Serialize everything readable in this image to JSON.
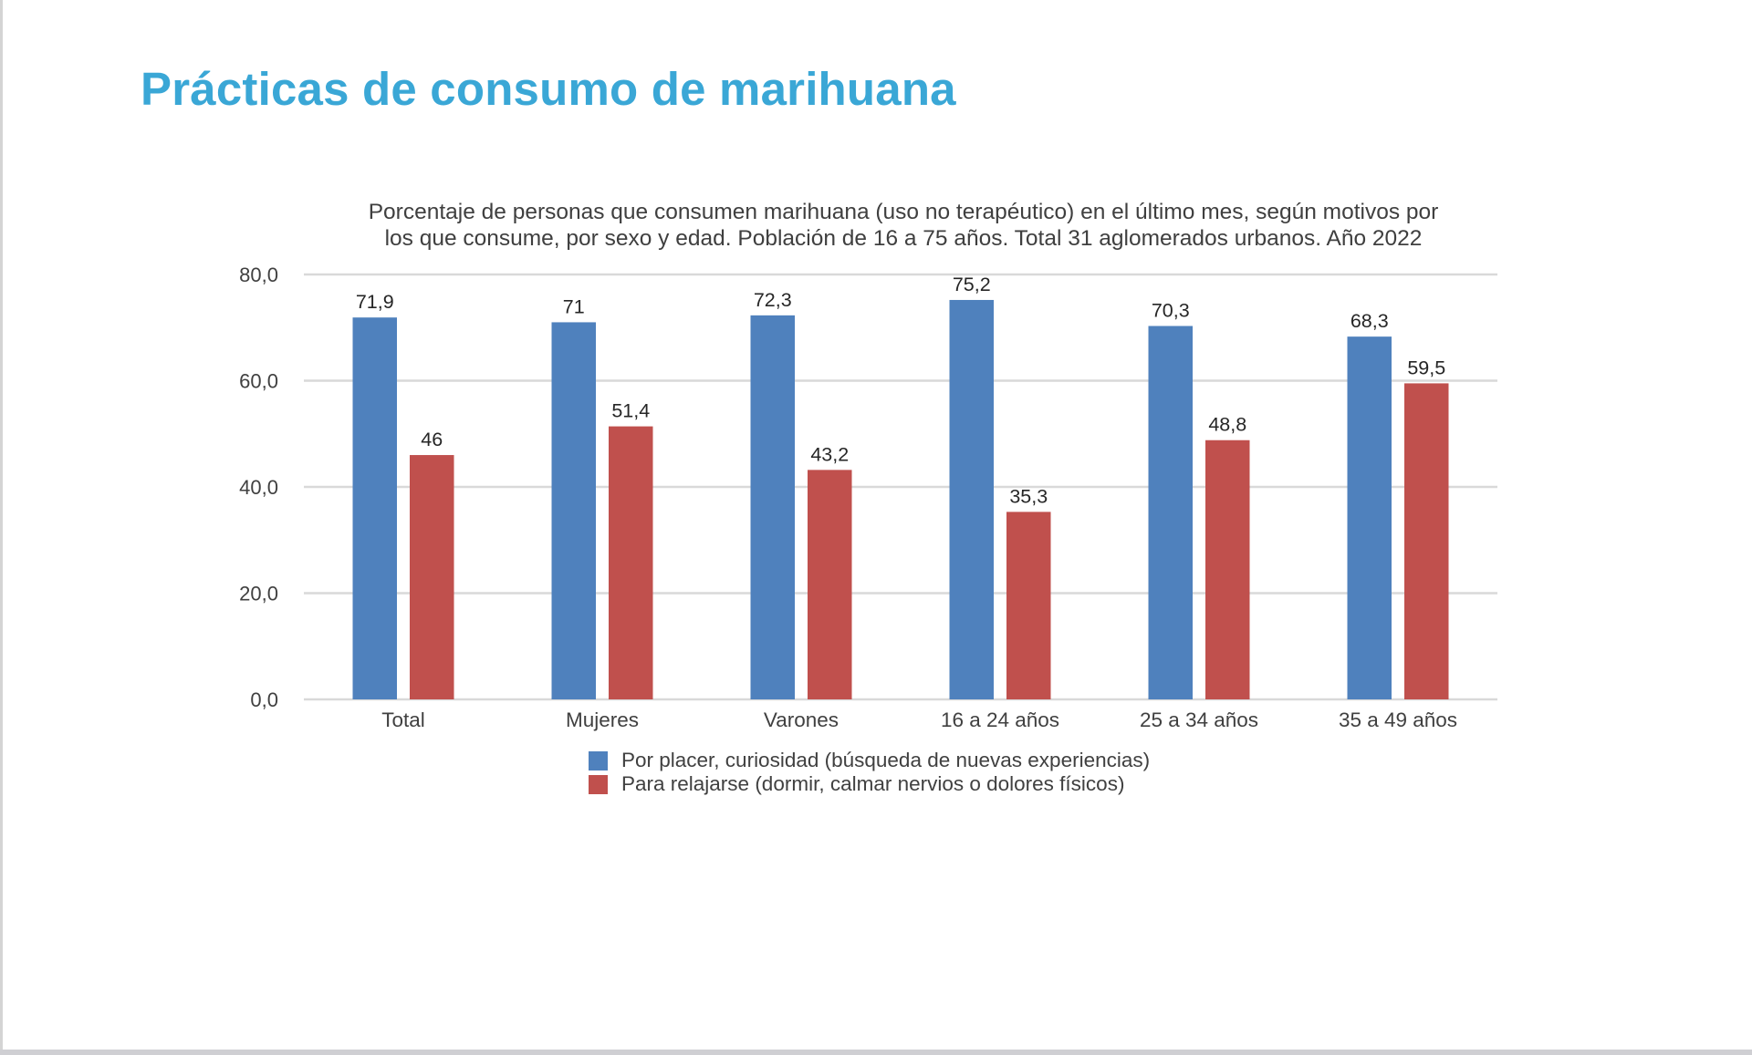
{
  "page": {
    "title": "Prácticas de consumo de marihuana",
    "title_color": "#3aa7d6"
  },
  "chart_data": {
    "type": "bar",
    "title_lines": [
      "Porcentaje de personas que consumen marihuana (uso no terapéutico) en el último mes, según motivos por",
      "los que consume, por sexo y edad. Población de 16 a 75 años. Total 31 aglomerados urbanos. Año 2022"
    ],
    "categories": [
      "Total",
      "Mujeres",
      "Varones",
      "16 a 24 años",
      "25 a 34 años",
      "35 a 49 años"
    ],
    "series": [
      {
        "name": "Por placer, curiosidad (búsqueda de nuevas experiencias)",
        "color": "#4f81bd",
        "values": [
          71.9,
          71,
          72.3,
          75.2,
          70.3,
          68.3
        ],
        "labels": [
          "71,9",
          "71",
          "72,3",
          "75,2",
          "70,3",
          "68,3"
        ]
      },
      {
        "name": "Para relajarse (dormir, calmar nervios o dolores físicos)",
        "color": "#c0504d",
        "values": [
          46,
          51.4,
          43.2,
          35.3,
          48.8,
          59.5
        ],
        "labels": [
          "46",
          "51,4",
          "43,2",
          "35,3",
          "48,8",
          "59,5"
        ]
      }
    ],
    "xlabel": "",
    "ylabel": "",
    "ylim": [
      0,
      80
    ],
    "yticks": [
      0,
      20,
      40,
      60,
      80
    ],
    "ytick_labels": [
      "0,0",
      "20,0",
      "40,0",
      "60,0",
      "80,0"
    ],
    "grid": true,
    "legend_position": "bottom"
  }
}
